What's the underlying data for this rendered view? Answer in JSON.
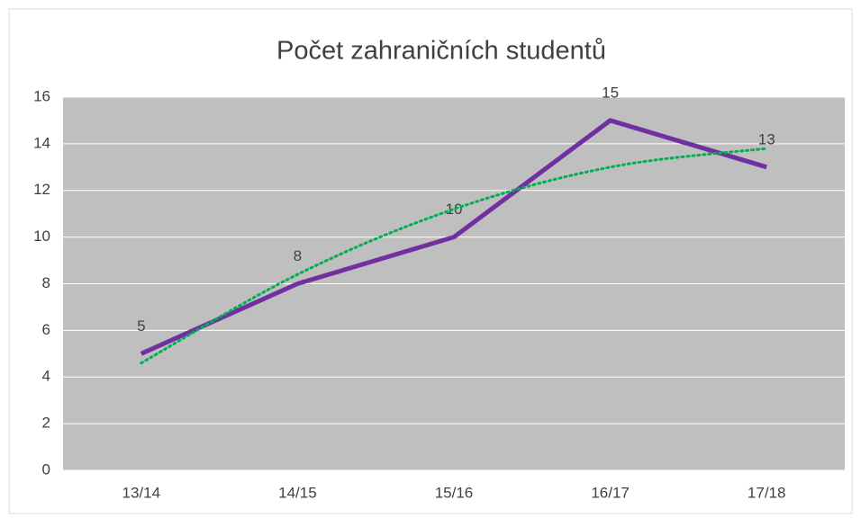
{
  "chart_data": {
    "type": "line",
    "title": "Počet zahraničních studentů",
    "categories": [
      "13/14",
      "14/15",
      "15/16",
      "16/17",
      "17/18"
    ],
    "series": [
      {
        "name": "Počet zahraničních studentů",
        "color": "#7030a0",
        "values": [
          5,
          8,
          10,
          15,
          13
        ]
      }
    ],
    "trendline": {
      "color": "#00b050",
      "style": "dotted",
      "values": [
        4.6,
        8.4,
        11.2,
        13.0,
        13.8
      ]
    },
    "ylim": [
      0,
      16
    ],
    "yticks": [
      0,
      2,
      4,
      6,
      8,
      10,
      12,
      14,
      16
    ],
    "grid": true,
    "plot_background": "#bfbfbf",
    "data_labels": true
  }
}
